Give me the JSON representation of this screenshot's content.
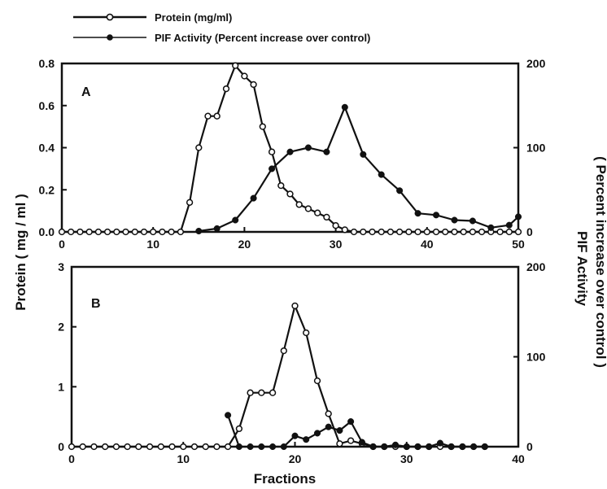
{
  "legend": {
    "protein_label": "Protein (mg/ml)",
    "pif_label": "PIF Activity (Percent increase over control)"
  },
  "left_axis_title": "Protein ( mg / ml )",
  "right_axis_title_line1": "PIF Activity",
  "right_axis_title_line2": "( Percent increase over control )",
  "x_axis_title": "Fractions",
  "colors": {
    "ink": "#111111",
    "open_marker_fill": "#ffffff"
  },
  "chart_data": [
    {
      "panel": "A",
      "type": "line",
      "xlim": [
        0,
        50
      ],
      "x_ticks": [
        0,
        10,
        20,
        30,
        40,
        50
      ],
      "ylim_left": [
        0,
        0.8
      ],
      "y_ticks_left": [
        "0.0",
        "0.2",
        "0.4",
        "0.6",
        "0.8"
      ],
      "ylim_right": [
        0,
        200
      ],
      "y_ticks_right": [
        "0",
        "100",
        "200"
      ],
      "series": [
        {
          "name": "Protein (mg/ml)",
          "axis": "left",
          "marker": "open-circle",
          "x": [
            0,
            1,
            2,
            3,
            4,
            5,
            6,
            7,
            8,
            9,
            10,
            11,
            12,
            13,
            14,
            15,
            16,
            17,
            18,
            19,
            20,
            21,
            22,
            23,
            24,
            25,
            26,
            27,
            28,
            29,
            30,
            31,
            32,
            33,
            34,
            35,
            36,
            37,
            38,
            39,
            40,
            41,
            42,
            43,
            44,
            45,
            46,
            47,
            48,
            49,
            50
          ],
          "y": [
            0,
            0,
            0,
            0,
            0,
            0,
            0,
            0,
            0,
            0,
            0,
            0,
            0,
            0,
            0.14,
            0.4,
            0.55,
            0.55,
            0.68,
            0.79,
            0.74,
            0.7,
            0.5,
            0.38,
            0.22,
            0.18,
            0.13,
            0.11,
            0.09,
            0.07,
            0.03,
            0.01,
            0,
            0,
            0,
            0,
            0,
            0,
            0,
            0,
            0,
            0,
            0,
            0,
            0,
            0,
            0,
            0,
            0,
            0,
            0
          ]
        },
        {
          "name": "PIF Activity (Percent increase over control)",
          "axis": "right",
          "marker": "filled-circle",
          "x": [
            15,
            17,
            19,
            21,
            23,
            25,
            27,
            29,
            31,
            33,
            35,
            37,
            39,
            41,
            43,
            45,
            47,
            49,
            50
          ],
          "y": [
            1,
            4,
            14,
            40,
            75,
            95,
            100,
            95,
            148,
            92,
            68,
            49,
            22,
            20,
            14,
            13,
            5,
            8,
            18
          ]
        }
      ]
    },
    {
      "panel": "B",
      "type": "line",
      "xlim": [
        0,
        40
      ],
      "x_ticks": [
        0,
        10,
        20,
        30,
        40
      ],
      "ylim_left": [
        0,
        3
      ],
      "y_ticks_left": [
        "0",
        "1",
        "2",
        "3"
      ],
      "ylim_right": [
        0,
        200
      ],
      "y_ticks_right": [
        "0",
        "100",
        "200"
      ],
      "series": [
        {
          "name": "Protein (mg/ml)",
          "axis": "left",
          "marker": "open-circle",
          "x": [
            0,
            1,
            2,
            3,
            4,
            5,
            6,
            7,
            8,
            9,
            10,
            11,
            12,
            13,
            14,
            15,
            16,
            17,
            18,
            19,
            20,
            21,
            22,
            23,
            24,
            25,
            26,
            27,
            28,
            29,
            30,
            31,
            32,
            33,
            34,
            35,
            36,
            37
          ],
          "y": [
            0,
            0,
            0,
            0,
            0,
            0,
            0,
            0,
            0,
            0,
            0,
            0,
            0,
            0,
            0,
            0.3,
            0.9,
            0.9,
            0.9,
            1.6,
            2.35,
            1.9,
            1.1,
            0.55,
            0.05,
            0.1,
            0.05,
            0,
            0,
            0,
            0,
            0,
            0,
            0,
            0,
            0,
            0,
            0
          ]
        },
        {
          "name": "PIF Activity (Percent increase over control)",
          "axis": "right",
          "marker": "filled-circle",
          "x": [
            14,
            15,
            16,
            17,
            18,
            19,
            20,
            21,
            22,
            23,
            24,
            25,
            26,
            27,
            28,
            29,
            30,
            31,
            32,
            33,
            34,
            35,
            36,
            37
          ],
          "y": [
            35,
            0,
            0,
            0,
            0,
            0,
            12,
            8,
            15,
            22,
            18,
            28,
            5,
            0,
            0,
            2,
            0,
            0,
            0,
            4,
            0,
            0,
            0,
            0
          ]
        }
      ]
    }
  ]
}
